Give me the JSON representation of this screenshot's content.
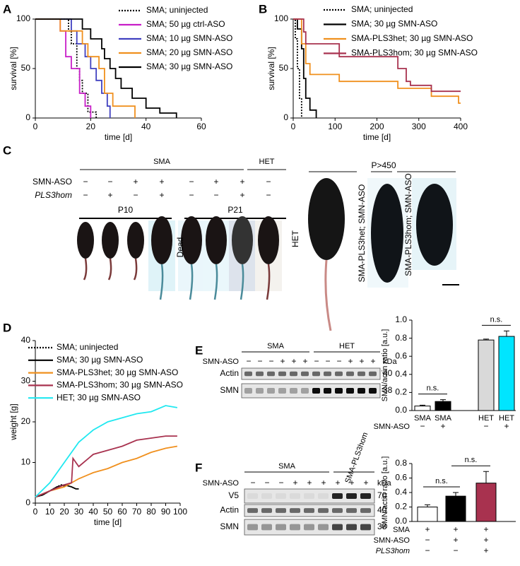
{
  "panel_labels": [
    "A",
    "B",
    "C",
    "D",
    "E",
    "F"
  ],
  "chart_data": [
    {
      "type": "line",
      "xlabel": "time [d]",
      "ylabel": "survival [%]",
      "xlim": [
        0,
        60
      ],
      "xticks": [
        0,
        20,
        40,
        60
      ],
      "ylim": [
        0,
        100
      ],
      "yticks": [
        0,
        50,
        100
      ],
      "series": [
        {
          "name": "SMA; uninjected",
          "color": "#000000",
          "dotted": true,
          "x": [
            0,
            12,
            12,
            13,
            13,
            15,
            15,
            16,
            16,
            17,
            17,
            19,
            19,
            22,
            22
          ],
          "values": [
            100,
            100,
            88,
            88,
            75,
            75,
            50,
            50,
            38,
            38,
            25,
            25,
            6,
            6,
            0
          ]
        },
        {
          "name": "SMA; 50 µg ctrl-ASO",
          "color": "#c81ec8",
          "dotted": false,
          "x": [
            0,
            9,
            9,
            11,
            11,
            13,
            13,
            16,
            16,
            18,
            18,
            20,
            20
          ],
          "values": [
            100,
            100,
            88,
            88,
            62,
            62,
            50,
            50,
            25,
            25,
            12,
            12,
            0
          ]
        },
        {
          "name": "SMA; 10 µg SMN-ASO",
          "color": "#4040c0",
          "dotted": false,
          "x": [
            0,
            13,
            13,
            15,
            15,
            18,
            18,
            20,
            20,
            22,
            22,
            24,
            24,
            26,
            26,
            27,
            27
          ],
          "values": [
            100,
            100,
            88,
            88,
            75,
            75,
            62,
            62,
            50,
            50,
            38,
            38,
            25,
            25,
            12,
            12,
            0
          ]
        },
        {
          "name": "SMA; 20 µg SMN-ASO",
          "color": "#f0901e",
          "dotted": false,
          "x": [
            0,
            9,
            9,
            17,
            17,
            19,
            19,
            23,
            23,
            25,
            25,
            28,
            28,
            36,
            36
          ],
          "values": [
            100,
            100,
            88,
            88,
            75,
            75,
            62,
            62,
            50,
            50,
            25,
            25,
            12,
            12,
            0
          ]
        },
        {
          "name": "SMA; 30 µg SMN-ASO",
          "color": "#000000",
          "dotted": false,
          "x": [
            0,
            17,
            17,
            20,
            20,
            24,
            24,
            25,
            25,
            27,
            27,
            29,
            29,
            31,
            31,
            35,
            35,
            40,
            40,
            45,
            45,
            51,
            51
          ],
          "values": [
            100,
            100,
            90,
            90,
            80,
            80,
            70,
            70,
            60,
            60,
            50,
            50,
            40,
            40,
            30,
            30,
            20,
            20,
            10,
            10,
            5,
            5,
            0
          ]
        }
      ]
    },
    {
      "type": "line",
      "xlabel": "time [d]",
      "ylabel": "survival [%]",
      "xlim": [
        0,
        400
      ],
      "xticks": [
        0,
        100,
        200,
        300,
        400
      ],
      "ylim": [
        0,
        100
      ],
      "yticks": [
        0,
        50,
        100
      ],
      "series": [
        {
          "name": "SMA; uninjected",
          "color": "#000000",
          "dotted": true,
          "x": [
            0,
            5,
            5,
            10,
            10,
            15,
            15,
            20,
            20
          ],
          "values": [
            100,
            100,
            80,
            80,
            50,
            50,
            20,
            20,
            0
          ]
        },
        {
          "name": "SMA; 30 µg SMN-ASO",
          "color": "#000000",
          "dotted": false,
          "x": [
            0,
            10,
            10,
            20,
            20,
            25,
            25,
            30,
            30,
            40,
            40,
            55,
            55
          ],
          "values": [
            100,
            100,
            90,
            90,
            70,
            70,
            40,
            40,
            20,
            20,
            8,
            8,
            0
          ]
        },
        {
          "name": "SMA-PLS3het; 30 µg SMN-ASO",
          "color": "#f0901e",
          "dotted": false,
          "x": [
            0,
            20,
            20,
            30,
            30,
            40,
            40,
            110,
            110,
            250,
            250,
            330,
            330,
            395,
            395,
            400
          ],
          "values": [
            100,
            100,
            75,
            75,
            55,
            55,
            44,
            44,
            37,
            37,
            30,
            30,
            22,
            22,
            15,
            15
          ]
        },
        {
          "name": "SMA-PLS3hom; 30 µg SMN-ASO",
          "color": "#a8324f",
          "dotted": false,
          "x": [
            0,
            25,
            25,
            30,
            30,
            110,
            110,
            250,
            250,
            270,
            270,
            280,
            280,
            330,
            330,
            400
          ],
          "values": [
            100,
            100,
            87,
            87,
            75,
            75,
            62,
            62,
            50,
            50,
            37,
            37,
            33,
            33,
            27,
            27
          ]
        }
      ]
    },
    {
      "type": "line",
      "xlabel": "time [d]",
      "ylabel": "weight [g]",
      "xlim": [
        0,
        100
      ],
      "xticks": [
        0,
        10,
        20,
        30,
        40,
        50,
        60,
        70,
        80,
        90,
        100
      ],
      "ylim": [
        0,
        40
      ],
      "yticks": [
        0,
        10,
        20,
        30,
        40
      ],
      "series": [
        {
          "name": "SMA; uninjected",
          "color": "#000000",
          "dotted": true,
          "x": [
            0,
            5,
            10,
            15,
            18,
            21
          ],
          "values": [
            1.5,
            2,
            3,
            4,
            4.5,
            4
          ]
        },
        {
          "name": "SMA; 30 µg SMN-ASO",
          "color": "#000000",
          "dotted": false,
          "x": [
            0,
            5,
            10,
            15,
            20,
            25,
            28,
            30
          ],
          "values": [
            1.5,
            2,
            3,
            4,
            4.5,
            4,
            3.5,
            3.5
          ]
        },
        {
          "name": "SMA-PLS3het; 30 µg SMN-ASO",
          "color": "#f0901e",
          "dotted": false,
          "x": [
            0,
            10,
            20,
            30,
            40,
            50,
            60,
            70,
            80,
            90,
            98
          ],
          "values": [
            1.5,
            3,
            4,
            6,
            7.5,
            8.5,
            10,
            11,
            12.5,
            13.5,
            14
          ]
        },
        {
          "name": "SMA-PLS3hom; 30 µg SMN-ASO",
          "color": "#a8324f",
          "dotted": false,
          "x": [
            0,
            10,
            20,
            25,
            26,
            30,
            40,
            50,
            60,
            70,
            80,
            90,
            98
          ],
          "values": [
            1.5,
            3,
            4.5,
            5,
            11,
            9,
            12,
            13,
            14,
            15.5,
            16,
            16.5,
            16.5
          ]
        },
        {
          "name": "HET; 30 µg SMN-ASO",
          "color": "#20e8f0",
          "dotted": false,
          "x": [
            0,
            10,
            20,
            30,
            40,
            50,
            60,
            70,
            80,
            90,
            98
          ],
          "values": [
            1.5,
            5,
            10,
            15,
            18,
            20,
            21,
            22,
            22.5,
            24,
            23.5
          ]
        }
      ]
    },
    {
      "type": "bar",
      "ylabel": "SMN/actin ratio [a.u.]",
      "ylim": [
        0,
        1
      ],
      "yticks": [
        {
          "value": 0,
          "label": "0.0"
        },
        0.2,
        0.4,
        0.6,
        0.8,
        {
          "value": 1,
          "label": "1.0"
        }
      ],
      "categories": [
        "SMA",
        "SMA",
        "HET",
        "HET"
      ],
      "values": [
        0.05,
        0.1,
        0.78,
        0.82
      ],
      "errors": [
        0.01,
        0.02,
        0.01,
        0.06
      ],
      "colors": [
        "#ffffff",
        "#000000",
        "#d9d9d9",
        "#00e5ff"
      ],
      "annotations": [
        "n.s.",
        "n.s."
      ],
      "rows": [
        {
          "label": "SMN-ASO",
          "signs": [
            "−",
            "+",
            "−",
            "+"
          ]
        }
      ]
    },
    {
      "type": "bar",
      "ylabel": "SMN/actin ratio [a.u.]",
      "ylim": [
        0,
        0.8
      ],
      "yticks": [
        {
          "value": 0,
          "label": "0.0"
        },
        0.2,
        0.4,
        0.6,
        0.8
      ],
      "values": [
        0.2,
        0.35,
        0.53
      ],
      "errors": [
        0.03,
        0.05,
        0.16
      ],
      "colors": [
        "#ffffff",
        "#000000",
        "#a8324f"
      ],
      "annotations": [
        "n.s.",
        "n.s."
      ],
      "rows": [
        {
          "label": "SMA",
          "signs": [
            "+",
            "+",
            "+"
          ]
        },
        {
          "label": "SMN-ASO",
          "signs": [
            "−",
            "+",
            "+"
          ]
        },
        {
          "label": "PLS3hom",
          "signs": [
            "−",
            "−",
            "+"
          ]
        }
      ]
    }
  ],
  "photo_panel": {
    "groups": [
      "SMA",
      "HET"
    ],
    "rows": [
      {
        "label": "SMN-ASO",
        "signs": [
          "−",
          "−",
          "+",
          "+",
          "−",
          "+",
          "+",
          "−"
        ]
      },
      {
        "label": "PLS3hom",
        "signs": [
          "−",
          "+",
          "−",
          "+",
          "−",
          "−",
          "+",
          "−"
        ]
      }
    ],
    "ages": [
      "P10",
      "P21"
    ],
    "dead_label": "Dead",
    "adult_age": "P>450",
    "adult_mice": [
      "HET",
      "SMA-PLS3het; SMN-ASO",
      "SMA-PLS3hom; SMN-ASO"
    ]
  },
  "blots": [
    {
      "groups": [
        "SMA",
        "HET"
      ],
      "treatment": {
        "label": "SMN-ASO",
        "signs": [
          "−",
          "−",
          "−",
          "+",
          "+",
          "+",
          "−",
          "−",
          "−",
          "+",
          "+",
          "+"
        ]
      },
      "unit": "kDa",
      "bands": [
        {
          "label": "Actin",
          "kda": "40"
        },
        {
          "label": "SMN",
          "kda": "38"
        }
      ]
    },
    {
      "groups": [
        "SMA",
        "SMA-PLS3hom"
      ],
      "treatment": {
        "label": "SMN-ASO",
        "signs": [
          "−",
          "−",
          "−",
          "+",
          "+",
          "+",
          "+",
          "+",
          "+"
        ]
      },
      "unit": "kDa",
      "bands": [
        {
          "label": "V5",
          "kda": "70"
        },
        {
          "label": "Actin",
          "kda": "40"
        },
        {
          "label": "SMN",
          "kda": "38"
        }
      ]
    }
  ]
}
